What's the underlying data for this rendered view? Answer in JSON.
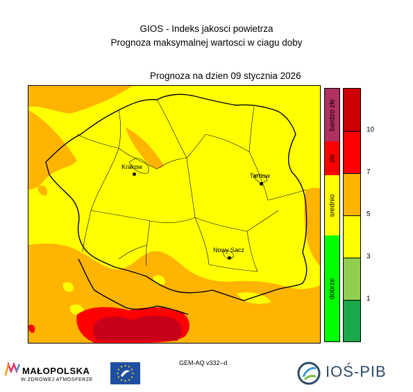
{
  "header": {
    "title": "GIOS - Indeks jakosci powietrza",
    "subtitle": "Prognoza maksymalnej wartosci w ciagu doby",
    "forecast_date": "Prognoza na dzien  09 stycznia 2026"
  },
  "map": {
    "cities": [
      {
        "name": "Krakow",
        "id": "krakow"
      },
      {
        "name": "Tarnow",
        "id": "tarnow"
      },
      {
        "name": "Nowy Sacz",
        "id": "nowy-sacz"
      }
    ]
  },
  "legend": {
    "categories": [
      {
        "label": "bardzo złe",
        "color": "#b03060"
      },
      {
        "label": "złe",
        "color": "#ff0000"
      },
      {
        "label": "srednio",
        "color": "#ffff00"
      },
      {
        "label": "dobrze",
        "color": "#00ff00"
      }
    ],
    "scale": [
      {
        "color": "#cc0000"
      },
      {
        "color": "#ff0000"
      },
      {
        "color": "#ffb400"
      },
      {
        "color": "#ffff00"
      },
      {
        "color": "#8fcf4f"
      },
      {
        "color": "#1aa84a"
      }
    ],
    "ticks": [
      "10",
      "7",
      "5",
      "3",
      "1"
    ]
  },
  "footer": {
    "model": "GEM-AQ v332--d",
    "malopolska_name": "MAŁOPOLSKA",
    "malopolska_sub": "W ZDROWEJ ATMOSFERZE",
    "ios_name": "IOŚ-PIB"
  }
}
